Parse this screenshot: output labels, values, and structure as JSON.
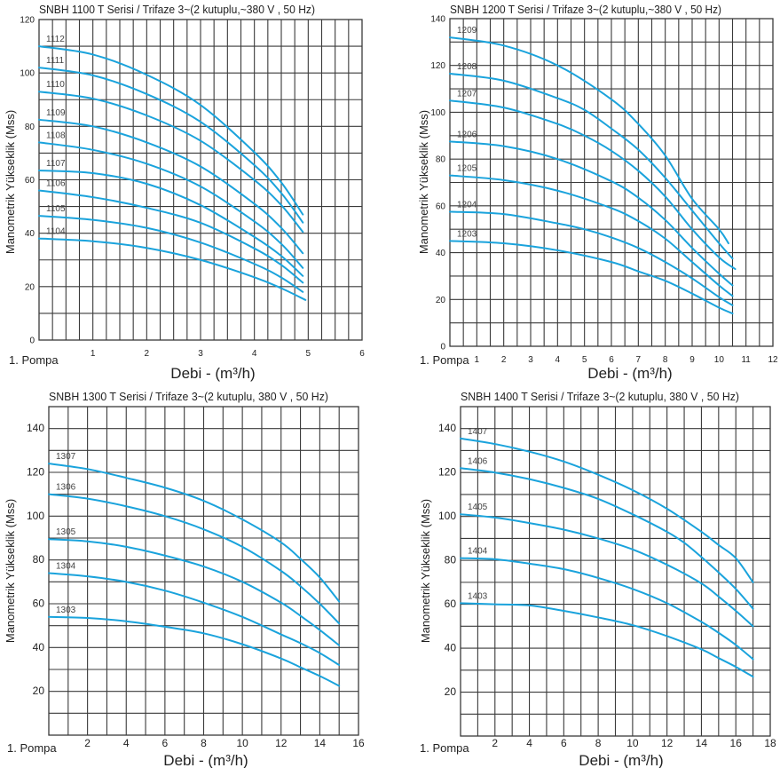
{
  "chart_data": [
    {
      "type": "line",
      "title": "SNBH 1100 T Serisi / Trifaze 3~(2 kutuplu,~380 V , 50 Hz)",
      "xlabel": "Debi - (m³/h)",
      "ylabel": "Manometrik Yükseklik (Mss)",
      "corner_label": "1. Pompa",
      "xlim": [
        0,
        6
      ],
      "ylim": [
        0,
        120
      ],
      "xgrid_step": 0.25,
      "ygrid_step": 10,
      "grid": true,
      "xticks": [
        "1",
        "2",
        "3",
        "4",
        "5",
        "6"
      ],
      "xtick_values": [
        1,
        2,
        3,
        4,
        5,
        6
      ],
      "yticks": [
        "0",
        "20",
        "40",
        "60",
        "80",
        "100",
        "120"
      ],
      "ytick_values": [
        0,
        20,
        40,
        60,
        80,
        100,
        120
      ],
      "series": [
        {
          "name": "1112",
          "x": [
            0,
            1,
            2,
            3,
            4,
            4.5,
            4.9
          ],
          "y": [
            110,
            106.9,
            99.3,
            88,
            70.3,
            59,
            47
          ]
        },
        {
          "name": "1111",
          "x": [
            0,
            1,
            2,
            3,
            4,
            4.5,
            4.9
          ],
          "y": [
            102,
            99.1,
            92.1,
            81.7,
            65.5,
            55,
            44
          ]
        },
        {
          "name": "1110",
          "x": [
            0,
            1,
            2,
            3,
            4,
            4.5,
            4.9
          ],
          "y": [
            93,
            90.4,
            84.1,
            74.6,
            59.9,
            50.5,
            40.5
          ]
        },
        {
          "name": "1109",
          "x": [
            0,
            1,
            2,
            3,
            4,
            4.5,
            4.9
          ],
          "y": [
            82.5,
            80,
            74,
            65,
            51,
            42,
            32.5
          ]
        },
        {
          "name": "1108",
          "x": [
            0,
            1,
            2,
            3,
            4,
            4.5,
            4.9
          ],
          "y": [
            74,
            71.2,
            66,
            57.5,
            44.4,
            36,
            27
          ]
        },
        {
          "name": "1107",
          "x": [
            0,
            1,
            2,
            3,
            4,
            4.5,
            4.9
          ],
          "y": [
            63.5,
            62.5,
            58.5,
            50.5,
            38.6,
            31.5,
            24
          ]
        },
        {
          "name": "1106",
          "x": [
            0,
            1,
            2,
            3,
            4,
            4.5,
            4.9
          ],
          "y": [
            56,
            53.5,
            49.5,
            43.9,
            34.3,
            28.1,
            21.5
          ]
        },
        {
          "name": "1105",
          "x": [
            0,
            1,
            2,
            3,
            4,
            4.5,
            4.9
          ],
          "y": [
            46.5,
            45,
            42,
            36.5,
            28.5,
            23.4,
            18
          ]
        },
        {
          "name": "1104",
          "x": [
            0,
            1,
            2,
            3,
            4,
            4.5,
            4.95
          ],
          "y": [
            38,
            37,
            34.5,
            30,
            23.5,
            19.4,
            15
          ]
        }
      ]
    },
    {
      "type": "line",
      "title": "SNBH 1200 T Serisi / Trifaze 3~(2 kutuplu,~380 V , 50 Hz)",
      "xlabel": "Debi - (m³/h)",
      "ylabel": "Manometrik Yükseklik (Mss)",
      "corner_label": "1. Pompa",
      "xlim": [
        0,
        12
      ],
      "ylim": [
        0,
        140
      ],
      "xgrid_step": 0.5,
      "ygrid_step": 10,
      "grid": true,
      "xticks": [
        "1",
        "2",
        "3",
        "4",
        "5",
        "6",
        "7",
        "8",
        "9",
        "10",
        "11",
        "12"
      ],
      "xtick_values": [
        1,
        2,
        3,
        4,
        5,
        6,
        7,
        8,
        9,
        10,
        11,
        12
      ],
      "yticks": [
        "0",
        "20",
        "40",
        "60",
        "80",
        "100",
        "120",
        "140"
      ],
      "ytick_values": [
        0,
        20,
        40,
        60,
        80,
        100,
        120,
        140
      ],
      "series": [
        {
          "name": "1209",
          "x": [
            0,
            2,
            4,
            6,
            7,
            8,
            9,
            10,
            10.35
          ],
          "y": [
            132,
            128.5,
            120,
            105.5,
            95,
            81.5,
            63,
            50,
            44
          ]
        },
        {
          "name": "1208",
          "x": [
            0,
            2,
            4,
            5,
            6,
            7,
            8,
            9,
            10,
            10.5
          ],
          "y": [
            116.5,
            113.5,
            106,
            101,
            93,
            84,
            72,
            58,
            44,
            37.5
          ]
        },
        {
          "name": "1207",
          "x": [
            0,
            2,
            4,
            5,
            6,
            7,
            8,
            9,
            10,
            10.6
          ],
          "y": [
            105,
            102,
            95,
            90,
            83.5,
            75,
            64,
            50,
            38,
            33
          ]
        },
        {
          "name": "1206",
          "x": [
            0,
            2,
            4,
            6,
            7,
            8,
            9,
            10,
            10.5
          ],
          "y": [
            87.5,
            85.5,
            80,
            70.5,
            63.5,
            54,
            42,
            31,
            26
          ]
        },
        {
          "name": "1205",
          "x": [
            0,
            2,
            4,
            6,
            7,
            8,
            9,
            10,
            10.5
          ],
          "y": [
            73,
            71,
            66.5,
            59,
            53.5,
            46,
            36,
            26,
            21.5
          ]
        },
        {
          "name": "1204",
          "x": [
            0,
            2,
            4,
            5,
            6,
            7,
            8,
            9,
            10,
            10.5
          ],
          "y": [
            57.5,
            56.5,
            52.5,
            50,
            46.5,
            42,
            36,
            29,
            21,
            17.5
          ]
        },
        {
          "name": "1203",
          "x": [
            0,
            2,
            4,
            6,
            7,
            8,
            9,
            10,
            10.5
          ],
          "y": [
            45,
            44,
            41,
            36,
            32,
            28,
            22.5,
            16.5,
            14
          ]
        }
      ]
    },
    {
      "type": "line",
      "title": "SNBH 1300 T Serisi / Trifaze 3~(2 kutuplu, 380 V , 50 Hz)",
      "xlabel": "Debi - (m³/h)",
      "ylabel": "Manometrik Yükseklik (Mss)",
      "corner_label": "1. Pompa",
      "xlim": [
        0,
        16
      ],
      "ylim": [
        0,
        150
      ],
      "xgrid_step": 1,
      "ygrid_step": 10,
      "grid": true,
      "xticks": [
        "2",
        "4",
        "6",
        "8",
        "10",
        "12",
        "14",
        "16"
      ],
      "xtick_values": [
        2,
        4,
        6,
        8,
        10,
        12,
        14,
        16
      ],
      "yticks": [
        "20",
        "40",
        "60",
        "80",
        "100",
        "120",
        "140"
      ],
      "ytick_values": [
        20,
        40,
        60,
        80,
        100,
        120,
        140
      ],
      "series": [
        {
          "name": "1307",
          "x": [
            0,
            2,
            4,
            6,
            8,
            10,
            12,
            13,
            14,
            15
          ],
          "y": [
            124,
            121.5,
            117.5,
            113,
            107,
            98.5,
            88,
            80.5,
            72,
            61
          ]
        },
        {
          "name": "1306",
          "x": [
            0,
            2,
            4,
            6,
            8,
            10,
            12,
            13,
            14,
            15
          ],
          "y": [
            110,
            108,
            104.5,
            100,
            94,
            86,
            75,
            68,
            60,
            51
          ]
        },
        {
          "name": "1305",
          "x": [
            0,
            2,
            4,
            6,
            8,
            10,
            12,
            13,
            14,
            15
          ],
          "y": [
            89.5,
            88.5,
            86,
            82,
            77,
            70,
            60.5,
            54.5,
            48,
            41
          ]
        },
        {
          "name": "1304",
          "x": [
            0,
            2,
            4,
            6,
            8,
            10,
            12,
            13,
            14,
            15
          ],
          "y": [
            74,
            72.5,
            70,
            66,
            60.5,
            54,
            46,
            42,
            37.5,
            32
          ]
        },
        {
          "name": "1303",
          "x": [
            0,
            2,
            4,
            6,
            8,
            10,
            12,
            13,
            14,
            15
          ],
          "y": [
            54,
            53.5,
            52,
            49.5,
            46.5,
            41.5,
            35,
            31,
            27,
            22.5
          ]
        }
      ]
    },
    {
      "type": "line",
      "title": "SNBH 1400 T Serisi / Trifaze 3~(2 kutuplu, 380 V , 50 Hz)",
      "xlabel": "Debi - (m³/h)",
      "ylabel": "Manometrik Yükseklik (Mss)",
      "corner_label": "1. Pompa",
      "xlim": [
        0,
        18
      ],
      "ylim": [
        0,
        150
      ],
      "xgrid_step": 1,
      "ygrid_step": 10,
      "grid": true,
      "xticks": [
        "2",
        "4",
        "6",
        "8",
        "10",
        "12",
        "14",
        "16",
        "18"
      ],
      "xtick_values": [
        2,
        4,
        6,
        8,
        10,
        12,
        14,
        16,
        18
      ],
      "yticks": [
        "20",
        "40",
        "60",
        "80",
        "100",
        "120",
        "140"
      ],
      "ytick_values": [
        20,
        40,
        60,
        80,
        100,
        120,
        140
      ],
      "series": [
        {
          "name": "1407",
          "x": [
            0,
            2,
            4,
            6,
            8,
            10,
            12,
            14,
            15,
            16,
            17
          ],
          "y": [
            135.5,
            133,
            129.5,
            125,
            119,
            112,
            103.5,
            93,
            87,
            81,
            70
          ]
        },
        {
          "name": "1406",
          "x": [
            0,
            2,
            4,
            6,
            8,
            10,
            12,
            13,
            14,
            15,
            16,
            17
          ],
          "y": [
            122,
            120,
            117,
            113,
            108,
            101,
            93,
            88,
            81.5,
            74.5,
            67,
            58
          ]
        },
        {
          "name": "1405",
          "x": [
            0,
            2,
            4,
            6,
            8,
            10,
            12,
            14,
            15,
            16,
            17
          ],
          "y": [
            101,
            99.5,
            97,
            94,
            90,
            85,
            78,
            69.5,
            63.5,
            57,
            50
          ]
        },
        {
          "name": "1404",
          "x": [
            0,
            2,
            4,
            6,
            8,
            10,
            12,
            14,
            15,
            16,
            17
          ],
          "y": [
            81,
            80.5,
            78.5,
            76,
            72,
            67,
            60.5,
            52,
            47,
            41.5,
            35
          ]
        },
        {
          "name": "1403",
          "x": [
            0,
            2,
            4,
            6,
            8,
            10,
            12,
            14,
            15,
            16,
            17
          ],
          "y": [
            60.5,
            60,
            59.5,
            57,
            54,
            50.5,
            45.5,
            39.5,
            35.5,
            31.5,
            27
          ]
        }
      ]
    }
  ]
}
